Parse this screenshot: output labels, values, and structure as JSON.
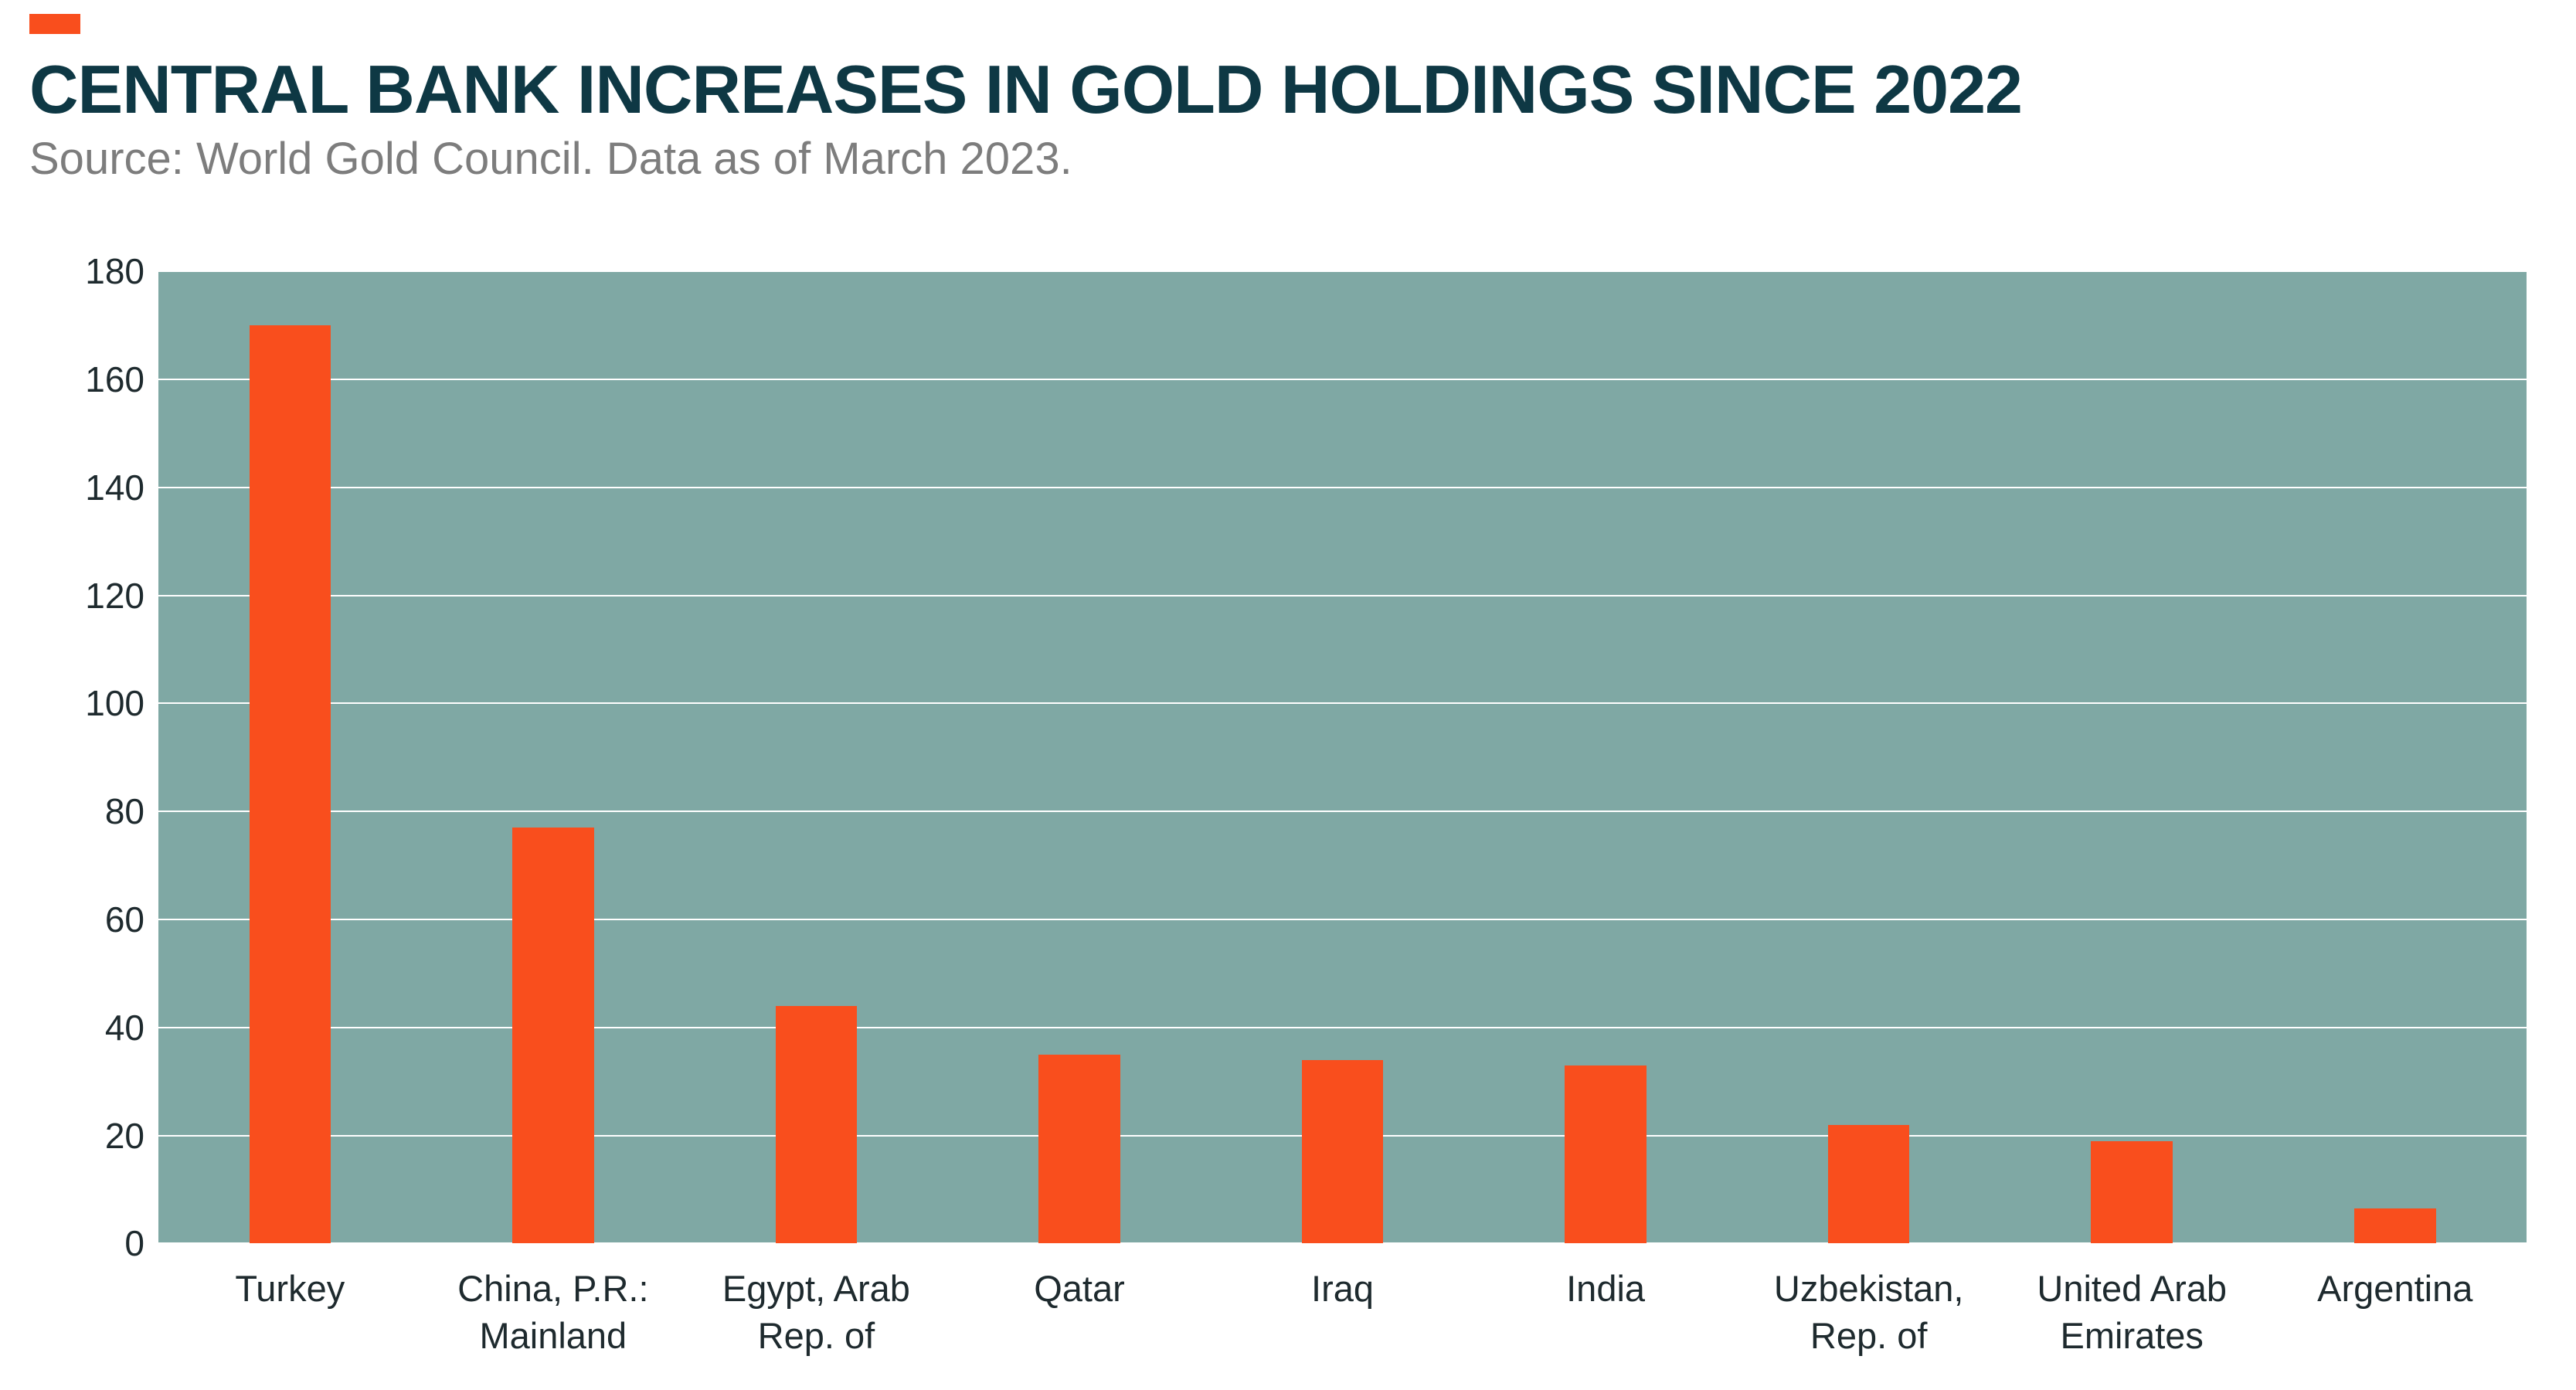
{
  "header": {
    "title": "CENTRAL BANK INCREASES IN GOLD HOLDINGS SINCE 2022",
    "source": "Source: World Gold Council. Data as of March 2023."
  },
  "colors": {
    "accent": "#F94E1D",
    "bar": "#F94E1D",
    "plot-bg": "#7FA8A4",
    "gridline": "#FFFFFF",
    "title": "#0E3844",
    "subtitle": "#7D7D7D",
    "axis-text": "#1E2A2E"
  },
  "chart_data": {
    "type": "bar",
    "title": "CENTRAL BANK INCREASES IN GOLD HOLDINGS SINCE 2022",
    "subtitle": "Source: World Gold Council. Data as of March 2023.",
    "categories": [
      "Turkey",
      "China, P.R.: Mainland",
      "Egypt, Arab Rep. of",
      "Qatar",
      "Iraq",
      "India",
      "Uzbekistan, Rep. of",
      "United Arab Emirates",
      "Argentina"
    ],
    "values": [
      170,
      77,
      44,
      35,
      34,
      33,
      22,
      19,
      6.5
    ],
    "xlabel": "",
    "ylabel": "",
    "ylim": [
      0,
      180
    ],
    "ytick_step": 20,
    "grid": true,
    "legend": false,
    "bar_color": "#F94E1D",
    "plot_background": "#7FA8A4"
  }
}
